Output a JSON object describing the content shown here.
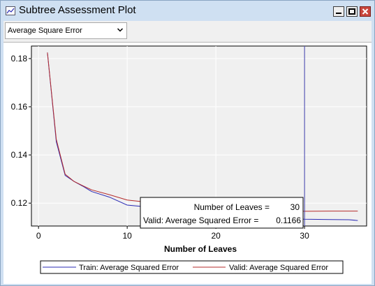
{
  "window": {
    "title": "Subtree Assessment Plot"
  },
  "toolbar": {
    "statistic_value": "Average Square Error"
  },
  "colors": {
    "train": "#2b2bb5",
    "valid": "#b52b2b",
    "selection_line": "#3a3aa8",
    "plot_background": "#f0f0f0",
    "gridline": "#ffffff"
  },
  "tooltip": {
    "leaves_label": "Number of Leaves =",
    "leaves_value": "30",
    "valid_label": "Valid: Average Squared Error =",
    "valid_value": "0.1166"
  },
  "chart_data": {
    "type": "line",
    "title": "",
    "xlabel": "Number of Leaves",
    "ylabel": "",
    "xlim": [
      -0.8,
      37
    ],
    "ylim": [
      0.1105,
      0.1852
    ],
    "x_ticks": [
      "0",
      "10",
      "20",
      "30"
    ],
    "y_ticks": [
      "0.12",
      "0.14",
      "0.16",
      "0.18"
    ],
    "grid": true,
    "legend_position": "bottom",
    "selected_x": 30,
    "series": [
      {
        "name": "Train: Average Squared Error",
        "x": [
          1,
          2,
          3,
          4,
          5,
          6,
          8,
          10,
          12,
          13,
          15,
          17,
          20,
          25,
          30,
          33,
          35,
          36
        ],
        "y": [
          0.1825,
          0.1455,
          0.1315,
          0.129,
          0.127,
          0.1248,
          0.1225,
          0.1192,
          0.1185,
          0.1165,
          0.116,
          0.1155,
          0.1148,
          0.114,
          0.1133,
          0.1132,
          0.1131,
          0.1128
        ]
      },
      {
        "name": "Valid: Average Squared Error",
        "x": [
          1,
          2,
          3,
          4,
          5,
          6,
          8,
          10,
          12,
          15,
          20,
          25,
          30,
          33,
          36
        ],
        "y": [
          0.1825,
          0.1465,
          0.132,
          0.129,
          0.1272,
          0.1255,
          0.1235,
          0.1213,
          0.1205,
          0.1185,
          0.117,
          0.1167,
          0.1166,
          0.1167,
          0.1167
        ]
      }
    ]
  }
}
